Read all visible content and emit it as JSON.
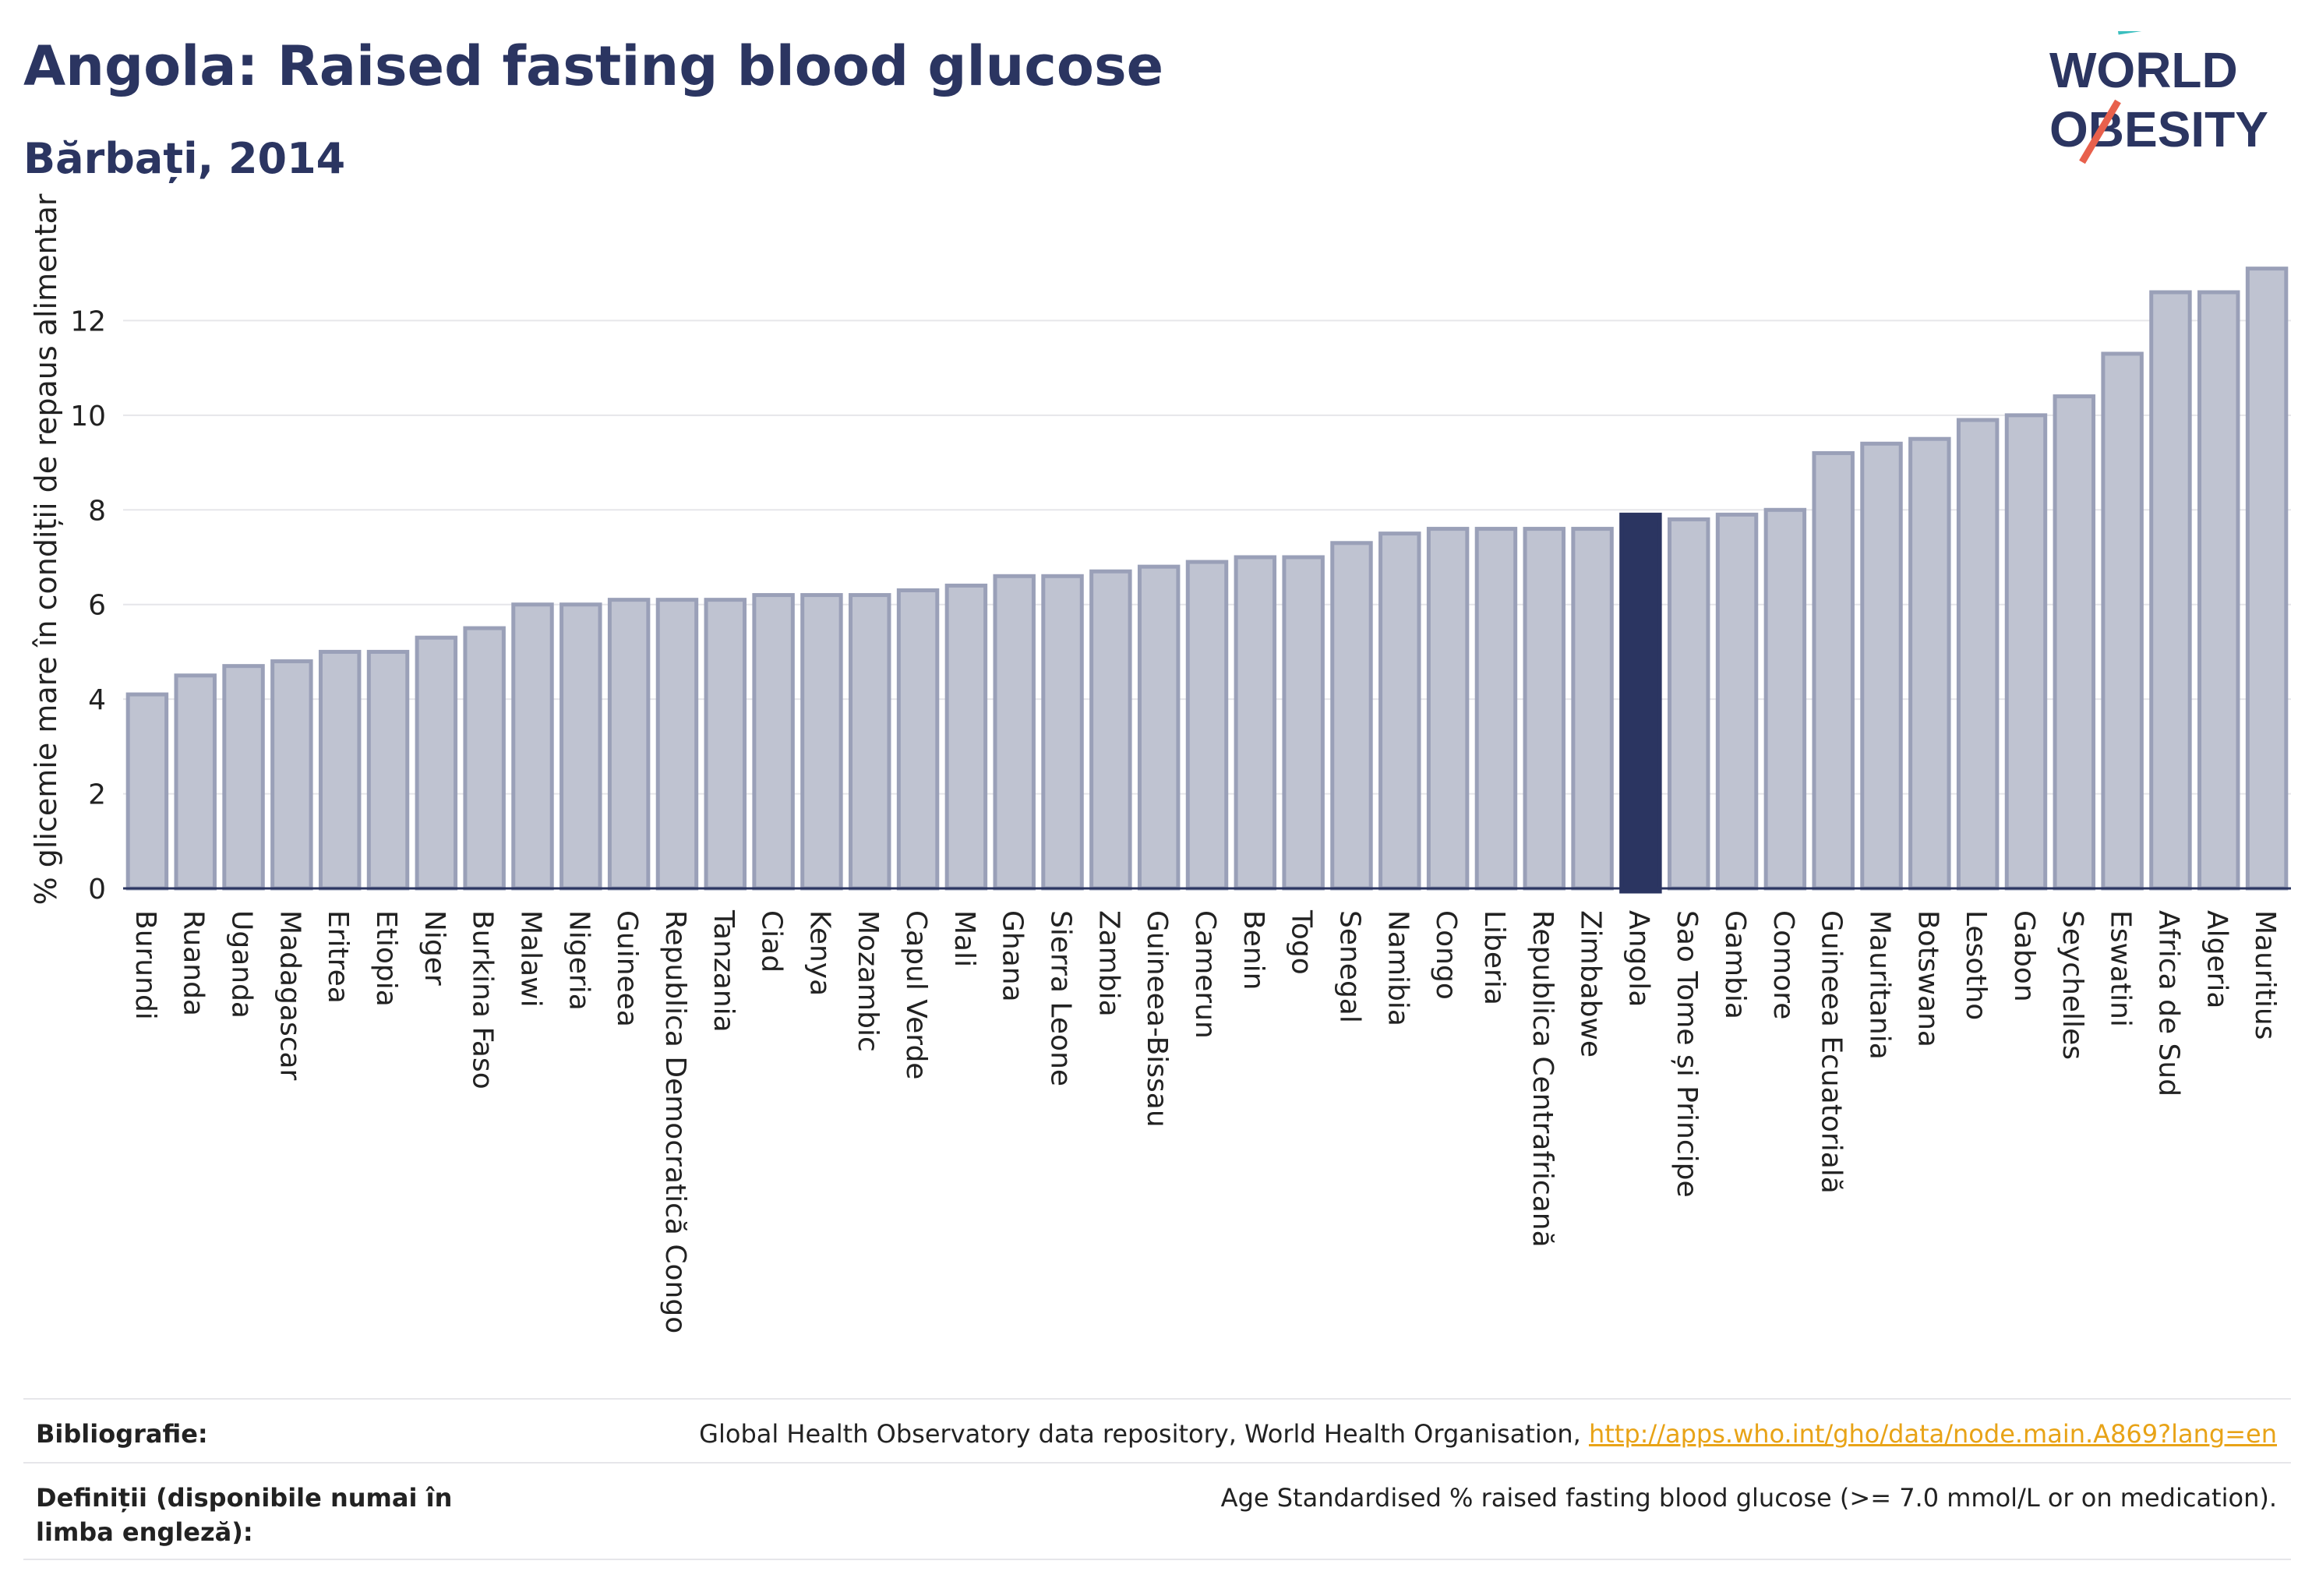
{
  "header": {
    "title": "Angola: Raised fasting blood glucose",
    "subtitle": "Bărbați, 2014"
  },
  "logo": {
    "line1": "WORLD",
    "line2": "OBESITY"
  },
  "chart_data": {
    "type": "bar",
    "ylabel": "% glicemie mare în condiții de repaus alimentar",
    "xlabel": "",
    "ylim": [
      0,
      14
    ],
    "yticks": [
      0,
      2,
      4,
      6,
      8,
      10,
      12
    ],
    "grid": true,
    "highlight": "Angola",
    "colors": {
      "bar": "#bfc3d1",
      "bar_edge": "#9aa0b8",
      "highlight": "#2b3561",
      "grid": "#e6e6ea"
    },
    "categories": [
      "Burundi",
      "Ruanda",
      "Uganda",
      "Madagascar",
      "Eritrea",
      "Etiopia",
      "Niger",
      "Burkina Faso",
      "Malawi",
      "Nigeria",
      "Guineea",
      "Republica Democratică Congo",
      "Tanzania",
      "Ciad",
      "Kenya",
      "Mozambic",
      "Capul Verde",
      "Mali",
      "Ghana",
      "Sierra Leone",
      "Zambia",
      "Guineea-Bissau",
      "Camerun",
      "Benin",
      "Togo",
      "Senegal",
      "Namibia",
      "Congo",
      "Liberia",
      "Republica Centrafricană",
      "Zimbabwe",
      "Angola",
      "Sao Tome și Principe",
      "Gambia",
      "Comore",
      "Guineea Ecuatorială",
      "Mauritania",
      "Botswana",
      "Lesotho",
      "Gabon",
      "Seychelles",
      "Eswatini",
      "Africa de Sud",
      "Algeria",
      "Mauritius"
    ],
    "values": [
      4.1,
      4.5,
      4.7,
      4.8,
      5.0,
      5.0,
      5.3,
      5.5,
      6.0,
      6.0,
      6.1,
      6.1,
      6.1,
      6.2,
      6.2,
      6.2,
      6.3,
      6.4,
      6.6,
      6.6,
      6.7,
      6.8,
      6.9,
      7.0,
      7.0,
      7.3,
      7.5,
      7.6,
      7.6,
      7.6,
      7.6,
      7.9,
      7.8,
      7.9,
      8.0,
      9.2,
      9.4,
      9.5,
      9.9,
      10.0,
      10.4,
      11.3,
      12.6,
      12.6,
      13.1
    ]
  },
  "footer": {
    "bibliography_label": "Bibliografie:",
    "bibliography_text": "Global Health Observatory data repository, World Health Organisation, ",
    "bibliography_link": "http://apps.who.int/gho/data/node.main.A869?lang=en",
    "definitions_label": "Definiții (disponibile numai în limba engleză):",
    "definitions_text": "Age Standardised % raised fasting blood glucose (>= 7.0 mmol/L or on medication)."
  }
}
